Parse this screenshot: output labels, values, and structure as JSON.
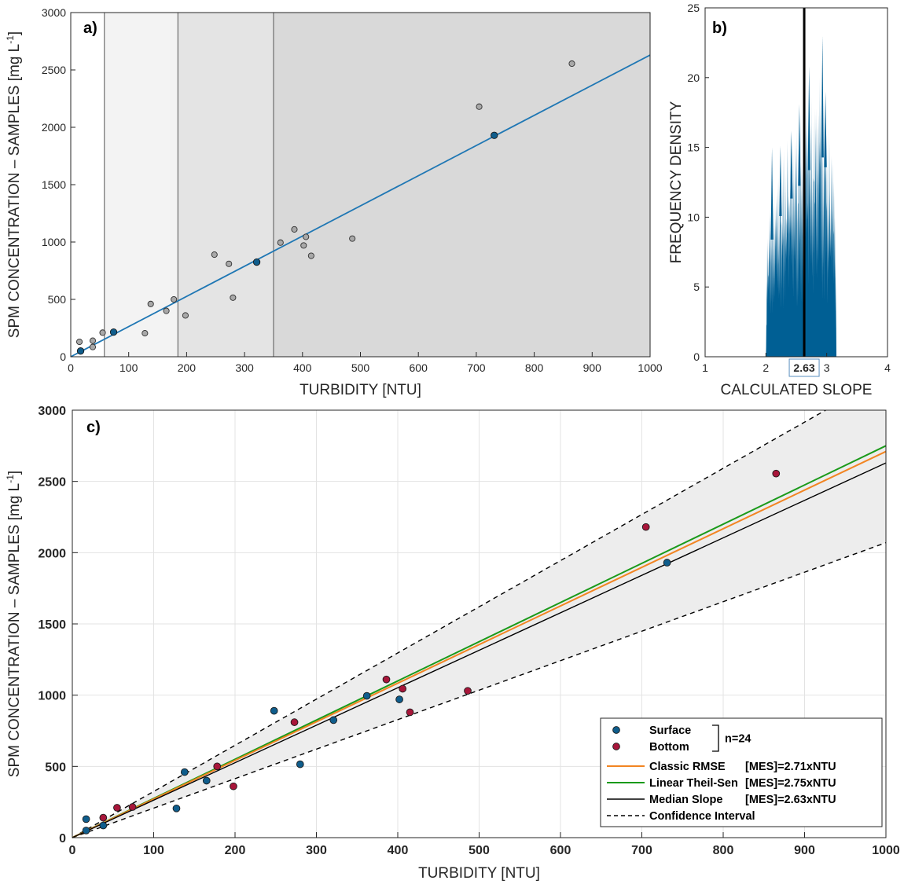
{
  "colors": {
    "surface": "#0f5d8c",
    "bottom": "#a8163a",
    "gray_point": "#a8a8a8",
    "fit_a": "#1f77b4",
    "hist": "#005f94",
    "rmse": "#f28522",
    "theil_sen": "#1a9a1a",
    "median": "#000000",
    "band": "#ededed",
    "zone1": "#f3f3f3",
    "zone2": "#e4e4e4",
    "zone3": "#d9d9d9"
  },
  "chart_data": [
    {
      "id": "a",
      "type": "scatter",
      "panel_label": "a)",
      "xlabel": "TURBIDITY [NTU]",
      "ylabel": "SPM CONCENTRATION – SAMPLES [mg L⁻¹]",
      "xlim": [
        0,
        1000
      ],
      "ylim": [
        0,
        3000
      ],
      "xticks": [
        "0",
        "100",
        "200",
        "300",
        "400",
        "500",
        "600",
        "700",
        "800",
        "900",
        "1000"
      ],
      "yticks": [
        "0",
        "500",
        "1000",
        "1500",
        "2000",
        "2500",
        "3000"
      ],
      "grid": false,
      "zone_boundaries": [
        58,
        185,
        350
      ],
      "fit_line": {
        "slope": 2.63,
        "intercept": 0
      },
      "gray_points": [
        [
          15,
          130
        ],
        [
          38,
          85
        ],
        [
          38,
          140
        ],
        [
          55,
          210
        ],
        [
          128,
          205
        ],
        [
          138,
          460
        ],
        [
          165,
          400
        ],
        [
          178,
          500
        ],
        [
          198,
          360
        ],
        [
          248,
          890
        ],
        [
          273,
          810
        ],
        [
          280,
          515
        ],
        [
          362,
          995
        ],
        [
          386,
          1110
        ],
        [
          402,
          970
        ],
        [
          406,
          1045
        ],
        [
          415,
          880
        ],
        [
          486,
          1030
        ],
        [
          705,
          2180
        ],
        [
          865,
          2555
        ]
      ],
      "highlighted_points": [
        [
          17,
          50
        ],
        [
          74,
          215
        ],
        [
          321,
          825
        ],
        [
          731,
          1930
        ]
      ]
    },
    {
      "id": "b",
      "type": "area",
      "panel_label": "b)",
      "xlabel": "CALCULATED SLOPE",
      "ylabel": "FREQUENCY DENSITY",
      "xlim": [
        1,
        4
      ],
      "ylim": [
        0,
        25
      ],
      "xticks": [
        "1",
        "2",
        "3",
        "4"
      ],
      "yticks": [
        "0",
        "5",
        "10",
        "15",
        "20",
        "25"
      ],
      "grid": false,
      "median_slope": 2.63,
      "median_label": "2.63",
      "envelope": [
        [
          2.0,
          0
        ],
        [
          2.02,
          9.5
        ],
        [
          2.1,
          12
        ],
        [
          2.2,
          14
        ],
        [
          2.3,
          15
        ],
        [
          2.4,
          16
        ],
        [
          2.5,
          17
        ],
        [
          2.6,
          18
        ],
        [
          2.7,
          19
        ],
        [
          2.8,
          20
        ],
        [
          2.9,
          21
        ],
        [
          3.0,
          19
        ],
        [
          3.1,
          15
        ],
        [
          3.15,
          10
        ],
        [
          3.16,
          0
        ]
      ],
      "peaks": [
        [
          2.1,
          15
        ],
        [
          2.24,
          15.1
        ],
        [
          2.42,
          16.2
        ],
        [
          2.55,
          18.1
        ],
        [
          2.71,
          20.8
        ],
        [
          2.93,
          23
        ],
        [
          2.98,
          19
        ]
      ]
    },
    {
      "id": "c",
      "type": "scatter",
      "panel_label": "c)",
      "xlabel": "TURBIDITY [NTU]",
      "ylabel": "SPM CONCENTRATION – SAMPLES [mg L⁻¹]",
      "xlim": [
        0,
        1000
      ],
      "ylim": [
        0,
        3000
      ],
      "xticks": [
        "0",
        "100",
        "200",
        "300",
        "400",
        "500",
        "600",
        "700",
        "800",
        "900",
        "1000"
      ],
      "yticks": [
        "0",
        "500",
        "1000",
        "1500",
        "2000",
        "2500",
        "3000"
      ],
      "grid": true,
      "legend_position": "bottom-right",
      "n_label": "n=24",
      "series": [
        {
          "name": "Surface",
          "kind": "points",
          "points": [
            [
              17,
              50
            ],
            [
              17,
              130
            ],
            [
              38,
              85
            ],
            [
              128,
              205
            ],
            [
              138,
              460
            ],
            [
              165,
              400
            ],
            [
              248,
              890
            ],
            [
              280,
              515
            ],
            [
              321,
              825
            ],
            [
              362,
              995
            ],
            [
              402,
              970
            ],
            [
              731,
              1930
            ]
          ]
        },
        {
          "name": "Bottom",
          "kind": "points",
          "points": [
            [
              38,
              140
            ],
            [
              55,
              210
            ],
            [
              74,
              215
            ],
            [
              178,
              500
            ],
            [
              198,
              360
            ],
            [
              273,
              810
            ],
            [
              386,
              1110
            ],
            [
              406,
              1045
            ],
            [
              415,
              880
            ],
            [
              486,
              1030
            ],
            [
              705,
              2180
            ],
            [
              865,
              2555
            ]
          ]
        },
        {
          "name": "Classic RMSE",
          "kind": "line",
          "slope": 2.71,
          "equation": "[MES]=2.71xNTU"
        },
        {
          "name": "Linear Theil-Sen",
          "kind": "line",
          "slope": 2.75,
          "equation": "[MES]=2.75xNTU"
        },
        {
          "name": "Median Slope",
          "kind": "line",
          "slope": 2.63,
          "equation": "[MES]=2.63xNTU"
        },
        {
          "name": "Confidence Interval",
          "kind": "band",
          "slope_upper": 3.24,
          "slope_lower": 2.07,
          "equation": ""
        }
      ]
    }
  ]
}
